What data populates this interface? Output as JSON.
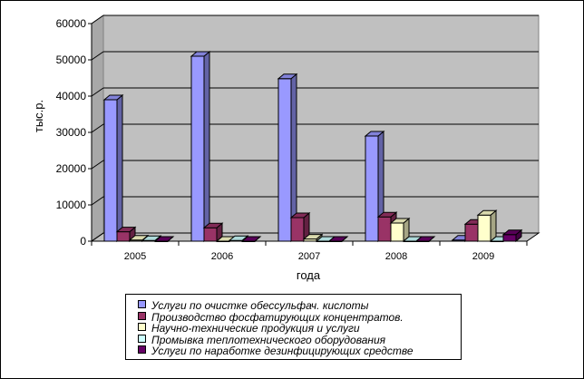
{
  "chart_data": {
    "type": "bar",
    "categories": [
      "2005",
      "2006",
      "2007",
      "2008",
      "2009"
    ],
    "series": [
      {
        "name": "Услуги по очистке обессульфач. кислоты",
        "values": [
          39000,
          51000,
          44800,
          29000,
          300
        ],
        "color": "#9999FF"
      },
      {
        "name": "Производство фосфатирующих концентратов.",
        "values": [
          2600,
          3700,
          6500,
          6700,
          4700
        ],
        "color": "#993366"
      },
      {
        "name": "Научно-технические продукция и услуги",
        "values": [
          300,
          0,
          600,
          5000,
          7200
        ],
        "color": "#FFFFCC"
      },
      {
        "name": "Промывка теплотехнического оборудования",
        "values": [
          200,
          200,
          0,
          0,
          0
        ],
        "color": "#CCFFFF"
      },
      {
        "name": "Услуги по наработке дезинфицирующих средстве",
        "values": [
          0,
          0,
          0,
          0,
          1800
        ],
        "color": "#660066"
      }
    ],
    "yticks": [
      "0",
      "10000",
      "20000",
      "30000",
      "40000",
      "50000",
      "60000"
    ],
    "ylim": [
      0,
      60000
    ],
    "xlabel": "года",
    "ylabel": "тыс.р.",
    "title": "",
    "grid": true,
    "wall_color": "#C0C0C0",
    "legend_position": "bottom"
  }
}
